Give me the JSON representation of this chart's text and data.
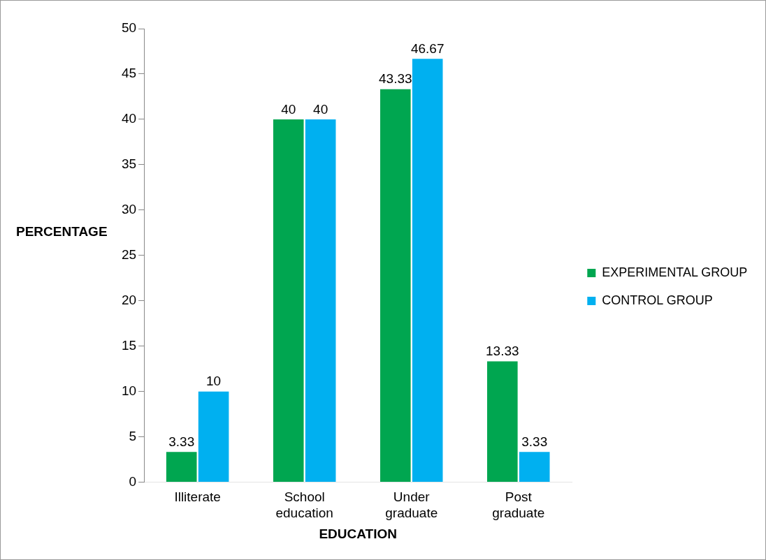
{
  "chart_data": {
    "type": "bar",
    "xlabel": "EDUCATION",
    "ylabel": "PERCENTAGE",
    "categories": [
      "Illiterate",
      "School education",
      "Under graduate",
      "Post graduate"
    ],
    "series": [
      {
        "name": "EXPERIMENTAL GROUP",
        "color": "#00a650",
        "values": [
          3.33,
          40,
          43.33,
          13.33
        ]
      },
      {
        "name": "CONTROL GROUP",
        "color": "#00b0f0",
        "values": [
          10,
          40,
          46.67,
          3.33
        ]
      }
    ],
    "ylim": [
      0,
      50
    ],
    "yticks": [
      0,
      5,
      10,
      15,
      20,
      25,
      30,
      35,
      40,
      45,
      50
    ],
    "grid": false,
    "legend": "right",
    "data_labels": true
  }
}
